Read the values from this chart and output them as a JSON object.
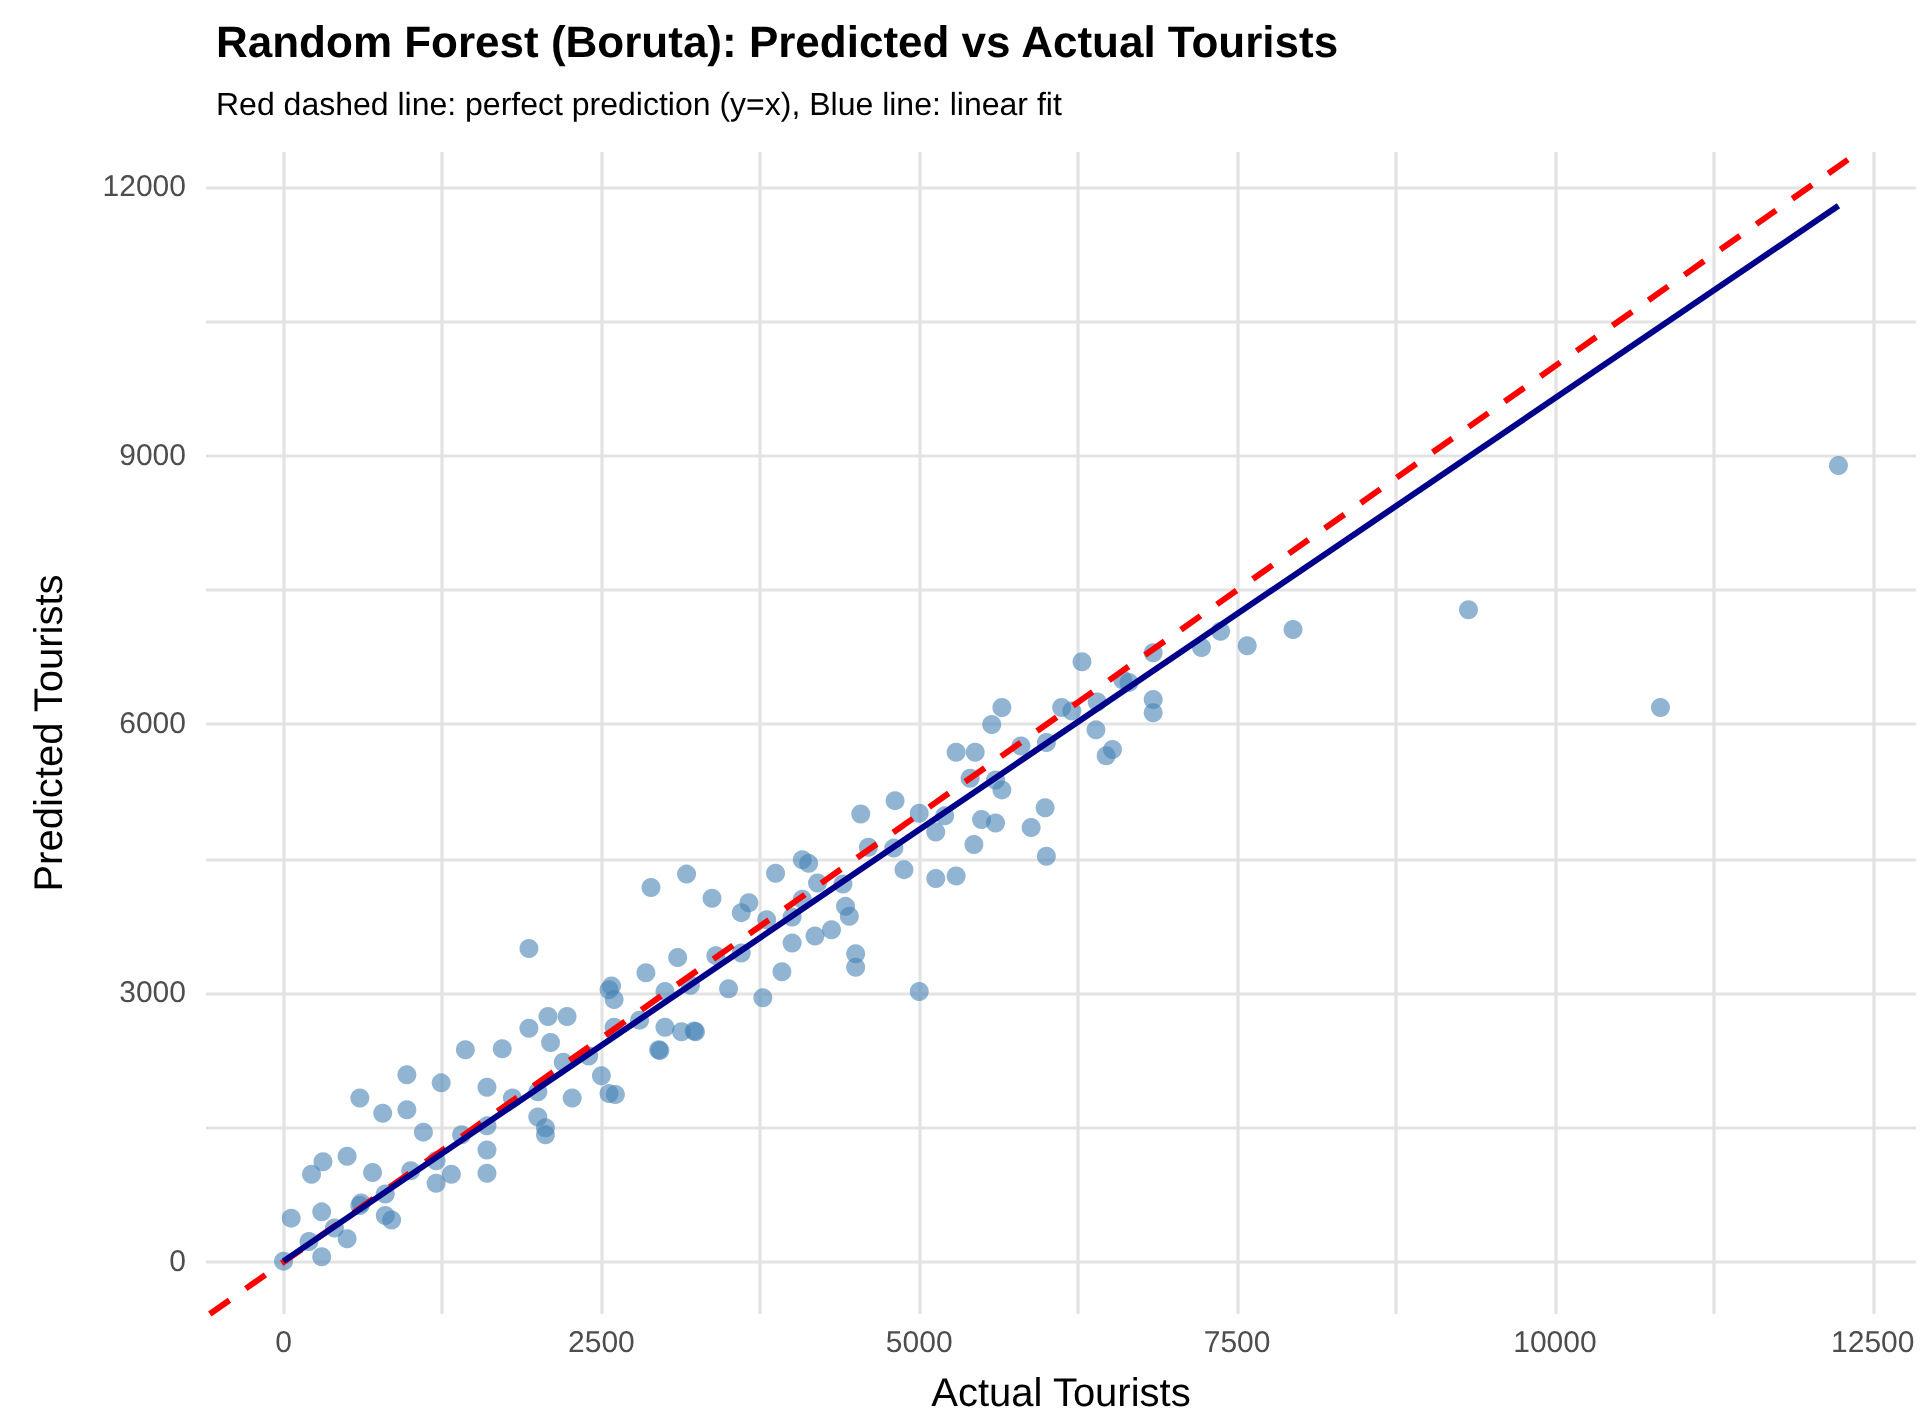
{
  "chart_data": {
    "type": "scatter",
    "title": "Random Forest (Boruta): Predicted vs Actual Tourists",
    "subtitle": "Red dashed line: perfect prediction (y=x), Blue line: linear fit",
    "xlabel": "Actual Tourists",
    "ylabel": "Predicted Tourists",
    "xlim": [
      -610,
      12840
    ],
    "ylim": [
      -580,
      12390
    ],
    "xticks": [
      0,
      {
        "value": 1250,
        "label": null
      },
      2500,
      {
        "value": 3750,
        "label": null
      },
      5000,
      {
        "value": 6250,
        "label": null
      },
      7500,
      {
        "value": 8750,
        "label": null
      },
      10000,
      {
        "value": 11250,
        "label": null
      },
      12500
    ],
    "yticks": [
      0,
      {
        "value": 1500,
        "label": null
      },
      3000,
      {
        "value": 4500,
        "label": null
      },
      6000,
      {
        "value": 7500,
        "label": null
      },
      9000,
      {
        "value": 10500,
        "label": null
      },
      12000
    ],
    "grid": true,
    "series": [
      {
        "color": "#4682b4",
        "marker": "circle",
        "x": [
          12230,
          9320,
          10830,
          7940,
          7580,
          7370,
          7220,
          6840,
          6840,
          6840,
          6650,
          6280,
          6520,
          6470,
          6390,
          6120,
          5650,
          5570,
          5990,
          5880,
          6000,
          5290,
          5440,
          5650,
          5490,
          5600,
          5430,
          5290,
          5130,
          4880,
          4540,
          4810,
          4500,
          4500,
          5000,
          4310,
          4420,
          4130,
          5130,
          4080,
          4180,
          2890,
          3170,
          3370,
          3920,
          3770,
          2960,
          3230,
          2560,
          2270,
          2230,
          2560,
          2850,
          3660,
          3870,
          4080,
          4450,
          1930,
          600,
          970,
          780,
          970,
          500,
          310,
          220,
          60,
          1430,
          1720,
          1930,
          2080,
          2610,
          2950,
          3130,
          3240,
          2580,
          1600,
          1320,
          2060,
          2060,
          850,
          610,
          1240,
          0,
          200,
          400,
          600,
          800,
          1000,
          1200,
          1400,
          1600,
          1800,
          2000,
          2200,
          2400,
          2600,
          2800,
          3000,
          3200,
          3400,
          3600,
          3800,
          4000,
          4200,
          4400,
          4600,
          4800,
          5000,
          5200,
          5400,
          5600,
          5800,
          6000,
          6200,
          6400,
          6600,
          300,
          500,
          800,
          1200,
          1600,
          2000,
          2500,
          3000,
          3500,
          4000,
          300,
          700,
          1100,
          1600,
          2100,
          2600,
          3100,
          3600
        ],
        "values": [
          8890,
          7280,
          6190,
          7060,
          6880,
          7040,
          6860,
          6800,
          6280,
          6130,
          6470,
          6700,
          5720,
          5650,
          5940,
          6190,
          6190,
          6000,
          5070,
          4850,
          4530,
          5690,
          5690,
          5270,
          4940,
          4900,
          4660,
          4310,
          4280,
          4380,
          5000,
          5150,
          3440,
          3290,
          3020,
          3710,
          3970,
          4450,
          4800,
          4050,
          3640,
          4180,
          4330,
          4060,
          3240,
          2950,
          2360,
          2580,
          1880,
          1830,
          2740,
          3040,
          3230,
          4010,
          4340,
          4490,
          3860,
          3500,
          1830,
          2090,
          1660,
          1700,
          1180,
          1120,
          980,
          490,
          2370,
          2380,
          2610,
          2740,
          1870,
          2370,
          2570,
          2570,
          3080,
          990,
          980,
          1500,
          1420,
          470,
          660,
          2000,
          10,
          230,
          380,
          630,
          760,
          1020,
          1130,
          1420,
          1520,
          1830,
          1900,
          2230,
          2300,
          2620,
          2700,
          3020,
          3090,
          3420,
          3450,
          3820,
          3850,
          4230,
          4220,
          4630,
          4620,
          5010,
          4980,
          5400,
          5380,
          5760,
          5800,
          6150,
          6250,
          6500,
          60,
          260,
          520,
          880,
          1250,
          1620,
          2080,
          2620,
          3050,
          3560,
          560,
          1000,
          1450,
          1950,
          2450,
          2930,
          3400,
          3900
        ]
      },
      {
        "type": "line",
        "color": "#ff0000",
        "line_style": "dashed",
        "marker": "none",
        "x": [
          -580,
          12390
        ],
        "values": [
          -580,
          12390
        ]
      },
      {
        "type": "line",
        "color": "#00008b",
        "line_style": "solid",
        "marker": "none",
        "x": [
          0,
          12230
        ],
        "values": [
          10,
          11790
        ]
      }
    ]
  }
}
